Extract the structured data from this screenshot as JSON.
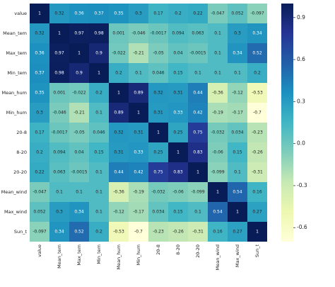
{
  "chart_data": {
    "type": "heatmap",
    "cmap": "YlGnBu",
    "categories": [
      "value",
      "Mean_tem",
      "Max_tem",
      "Min_tem",
      "Mean_hum",
      "Min_hum",
      "20-8",
      "8-20",
      "20-20",
      "Mean_wind",
      "Max_wind",
      "Sun_t"
    ],
    "values": [
      [
        1,
        0.32,
        0.36,
        0.37,
        0.35,
        0.3,
        0.17,
        0.2,
        0.22,
        -0.047,
        0.052,
        -0.097
      ],
      [
        0.32,
        1,
        0.97,
        0.98,
        0.001,
        -0.046,
        -0.0017,
        0.094,
        0.063,
        0.1,
        0.3,
        0.34
      ],
      [
        0.36,
        0.97,
        1,
        0.9,
        -0.022,
        -0.21,
        -0.05,
        0.04,
        -0.0015,
        0.1,
        0.34,
        0.52
      ],
      [
        0.37,
        0.98,
        0.9,
        1,
        0.2,
        0.1,
        0.046,
        0.15,
        0.1,
        0.1,
        0.1,
        0.2
      ],
      [
        0.35,
        0.001,
        -0.022,
        0.2,
        1,
        0.89,
        0.32,
        0.31,
        0.44,
        -0.36,
        -0.12,
        -0.53
      ],
      [
        0.3,
        -0.046,
        -0.21,
        0.1,
        0.89,
        1,
        0.31,
        0.33,
        0.42,
        -0.19,
        -0.17,
        -0.7
      ],
      [
        0.17,
        -0.0017,
        -0.05,
        0.046,
        0.32,
        0.31,
        1,
        0.25,
        0.75,
        -0.032,
        0.034,
        -0.23
      ],
      [
        0.2,
        0.094,
        0.04,
        0.15,
        0.31,
        0.33,
        0.25,
        1,
        0.83,
        -0.06,
        0.15,
        -0.26
      ],
      [
        0.22,
        0.063,
        -0.0015,
        0.1,
        0.44,
        0.42,
        0.75,
        0.83,
        1,
        -0.099,
        0.1,
        -0.31
      ],
      [
        -0.047,
        0.1,
        0.1,
        0.1,
        -0.36,
        -0.19,
        -0.032,
        -0.06,
        -0.099,
        1,
        0.54,
        0.16
      ],
      [
        0.052,
        0.3,
        0.34,
        0.1,
        -0.12,
        -0.17,
        0.034,
        0.15,
        0.1,
        0.54,
        1,
        0.27
      ],
      [
        -0.097,
        0.34,
        0.52,
        0.2,
        -0.53,
        -0.7,
        -0.23,
        -0.26,
        -0.31,
        0.16,
        0.27,
        1
      ]
    ],
    "clim": [
      -0.7,
      1
    ],
    "cticks": [
      -0.6,
      -0.3,
      {
        "value": 0,
        "label": "0.0"
      },
      0.3,
      0.6,
      0.9
    ]
  }
}
